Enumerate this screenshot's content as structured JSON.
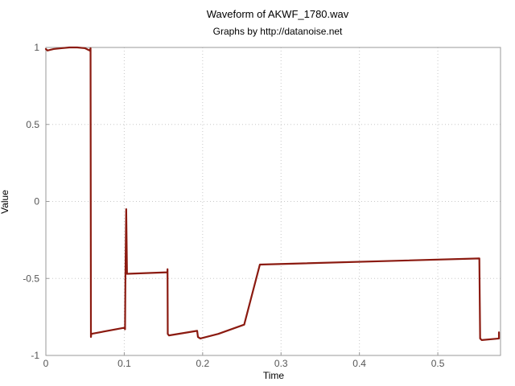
{
  "chart_data": {
    "type": "line",
    "title": "Waveform of AKWF_1780.wav",
    "subtitle": "Graphs by http://datanoise.net",
    "xlabel": "Time",
    "ylabel": "Value",
    "xlim": [
      0,
      0.58
    ],
    "ylim": [
      -1,
      1
    ],
    "xticks": [
      0,
      0.1,
      0.2,
      0.3,
      0.4,
      0.5
    ],
    "xtick_labels": [
      "0",
      "0.1",
      "0.2",
      "0.3",
      "0.4",
      "0.5"
    ],
    "yticks": [
      1,
      0.5,
      0,
      -0.5,
      -1
    ],
    "ytick_labels": [
      "1",
      "0.5",
      "0",
      "-0.5",
      "-1"
    ],
    "grid": true,
    "line_color": "#8b1a10",
    "series": [
      {
        "points": [
          [
            0.0,
            0.99
          ],
          [
            0.002,
            0.98
          ],
          [
            0.01,
            0.99
          ],
          [
            0.02,
            0.995
          ],
          [
            0.03,
            1.0
          ],
          [
            0.04,
            1.0
          ],
          [
            0.05,
            0.995
          ],
          [
            0.056,
            0.98
          ],
          [
            0.057,
            0.995
          ],
          [
            0.0575,
            -0.88
          ],
          [
            0.058,
            -0.86
          ],
          [
            0.1,
            -0.82
          ],
          [
            0.101,
            -0.83
          ],
          [
            0.1015,
            -0.48
          ],
          [
            0.1025,
            -0.05
          ],
          [
            0.1035,
            -0.47
          ],
          [
            0.155,
            -0.46
          ],
          [
            0.1552,
            -0.44
          ],
          [
            0.1555,
            -0.86
          ],
          [
            0.157,
            -0.87
          ],
          [
            0.193,
            -0.84
          ],
          [
            0.194,
            -0.88
          ],
          [
            0.197,
            -0.89
          ],
          [
            0.22,
            -0.86
          ],
          [
            0.253,
            -0.8
          ],
          [
            0.273,
            -0.41
          ],
          [
            0.553,
            -0.37
          ],
          [
            0.554,
            -0.89
          ],
          [
            0.556,
            -0.9
          ],
          [
            0.578,
            -0.89
          ],
          [
            0.578,
            -0.85
          ]
        ]
      }
    ]
  }
}
